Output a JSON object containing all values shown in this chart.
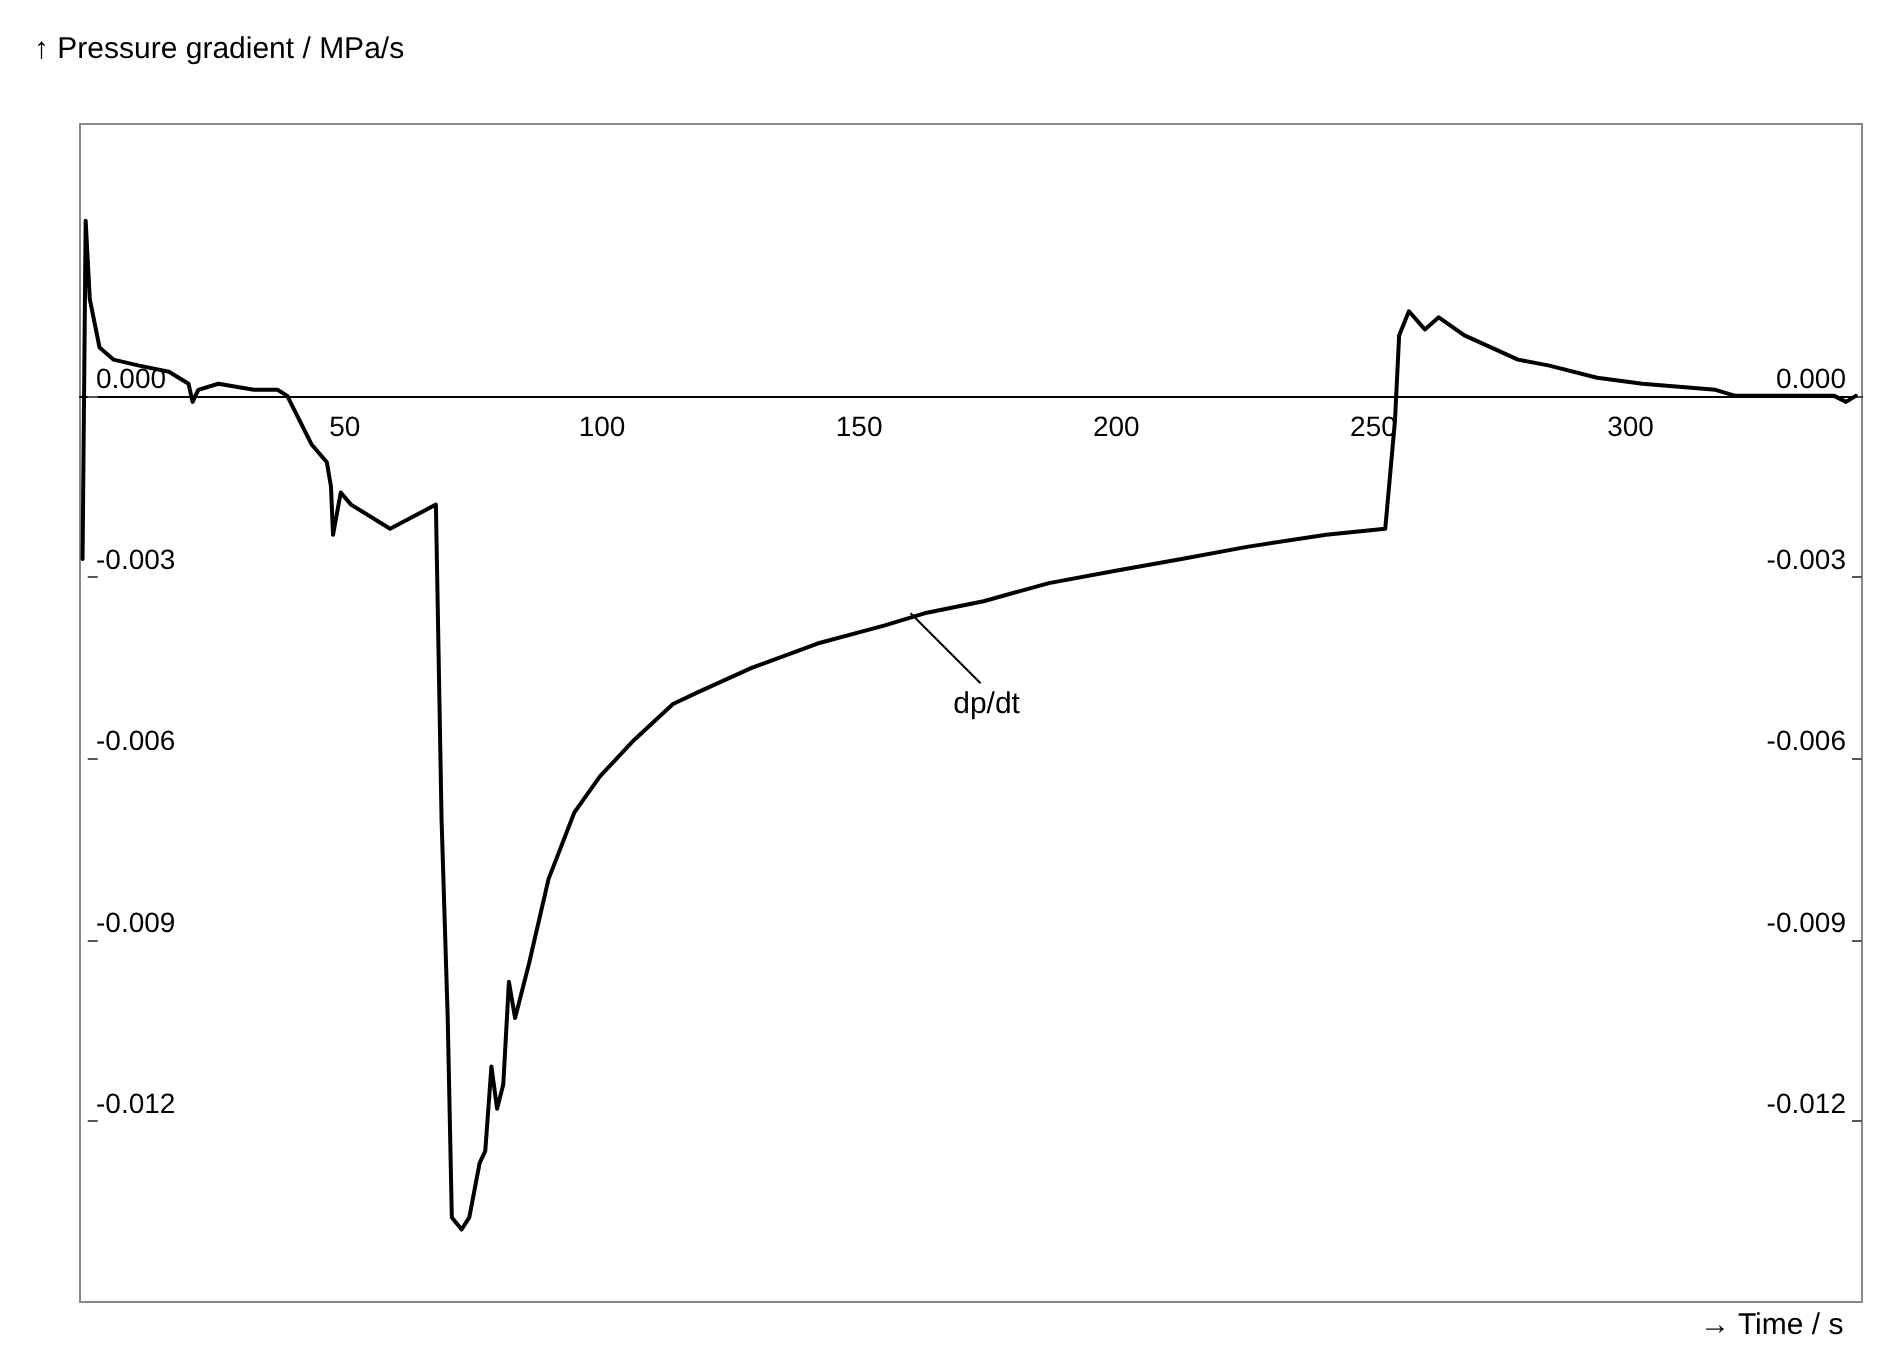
{
  "chart_data": {
    "type": "line",
    "xlabel": "→ Time / s",
    "ylabel": "↑ Pressure gradient / MPa/s",
    "xlim": [
      -1.5,
      345
    ],
    "xticks": [
      50,
      100,
      150,
      200,
      250,
      300
    ],
    "ylim": [
      -0.015,
      0.0045
    ],
    "yticks": [
      {
        "value": 0,
        "label": "0.000"
      },
      -0.003,
      -0.006,
      -0.009,
      -0.012
    ],
    "y2lim": [
      -0.015,
      0.0045
    ],
    "y2ticks": [
      {
        "value": 0,
        "label": "0.000"
      },
      -0.003,
      -0.006,
      -0.009,
      -0.012
    ],
    "grid": false,
    "marker": "none",
    "line_style": "solid",
    "annotations": [
      {
        "text": "dp/dt",
        "x": 160,
        "y": -0.0036
      }
    ],
    "series": [
      {
        "color": "#000000",
        "x": [
          -1,
          -0.4,
          0.4,
          2.3,
          5,
          10,
          15.8,
          19.6,
          20.4,
          21.5,
          25.4,
          32.3,
          34.2,
          36.9,
          38.8,
          43.5,
          46.5,
          47.3,
          47.7,
          49.2,
          51.2,
          58.8,
          67.7,
          68.8,
          70,
          70.8,
          72.7,
          74.2,
          76.2,
          77.3,
          78.5,
          79.6,
          80.8,
          81.9,
          83.1,
          85.8,
          89.6,
          94.6,
          99.6,
          106.2,
          113.8,
          118.8,
          129.2,
          141.9,
          155,
          162.7,
          174.2,
          186.9,
          199.6,
          212.7,
          225.4,
          240.8,
          252.3,
          254.2,
          255,
          256.9,
          260,
          262.7,
          267.7,
          278.1,
          284.2,
          293.5,
          302.3,
          316.5,
          320.4,
          339.6,
          341.9,
          343.8
        ],
        "values": [
          -0.0027,
          0.0029,
          0.0016,
          0.0008,
          0.0006,
          0.0005,
          0.0004,
          0.0002,
          -0.0001,
          0.0001,
          0.0002,
          0.0001,
          0.0001,
          0.0001,
          0,
          -0.0008,
          -0.0011,
          -0.0015,
          -0.0023,
          -0.0016,
          -0.0018,
          -0.0022,
          -0.0018,
          -0.007,
          -0.0103,
          -0.0136,
          -0.0138,
          -0.0136,
          -0.0127,
          -0.0125,
          -0.0111,
          -0.0118,
          -0.0114,
          -0.0097,
          -0.0103,
          -0.0094,
          -0.008,
          -0.0069,
          -0.0063,
          -0.0057,
          -0.0051,
          -0.0049,
          -0.0045,
          -0.0041,
          -0.0038,
          -0.0036,
          -0.0034,
          -0.0031,
          -0.0029,
          -0.0027,
          -0.0025,
          -0.0023,
          -0.0022,
          -0.0004,
          0.001,
          0.0014,
          0.0011,
          0.0013,
          0.001,
          0.0006,
          0.0005,
          0.0003,
          0.0002,
          0.0001,
          0,
          0,
          -0.0001,
          0
        ]
      }
    ]
  }
}
